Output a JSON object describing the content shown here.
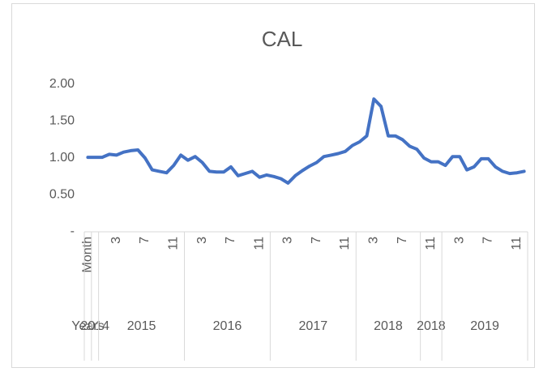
{
  "chart_data": {
    "type": "line",
    "title": "CAL",
    "categories": [
      "Month",
      null,
      null,
      null,
      "3",
      null,
      null,
      null,
      "7",
      null,
      null,
      null,
      "11",
      null,
      null,
      null,
      "3",
      null,
      null,
      null,
      "7",
      null,
      null,
      null,
      "11",
      null,
      null,
      null,
      "3",
      null,
      null,
      null,
      "7",
      null,
      null,
      null,
      "11",
      null,
      null,
      null,
      "3",
      null,
      null,
      null,
      "7",
      null,
      null,
      null,
      "11",
      null,
      null,
      null,
      "3",
      null,
      null,
      null,
      "7",
      null,
      null,
      null,
      "11",
      null
    ],
    "category_groups": [
      {
        "label": "Years",
        "span": 1
      },
      {
        "label": "2014",
        "span": 1
      },
      {
        "label": "2015",
        "span": 12
      },
      {
        "label": "2016",
        "span": 12
      },
      {
        "label": "2017",
        "span": 12
      },
      {
        "label": "2018",
        "span": 9
      },
      {
        "label": "2018",
        "span": 3
      },
      {
        "label": "2019",
        "span": 12
      }
    ],
    "series": [
      {
        "name": "CAL",
        "color": "#4472c4",
        "values": [
          1.01,
          1.01,
          1.01,
          1.05,
          1.04,
          1.08,
          1.1,
          1.11,
          1.0,
          0.84,
          0.82,
          0.8,
          0.9,
          1.04,
          0.97,
          1.02,
          0.94,
          0.82,
          0.81,
          0.81,
          0.88,
          0.76,
          0.79,
          0.82,
          0.74,
          0.77,
          0.75,
          0.72,
          0.66,
          0.76,
          0.83,
          0.89,
          0.94,
          1.02,
          1.04,
          1.06,
          1.09,
          1.17,
          1.22,
          1.3,
          1.8,
          1.7,
          1.3,
          1.3,
          1.25,
          1.16,
          1.12,
          1.0,
          0.95,
          0.95,
          0.9,
          1.02,
          1.02,
          0.84,
          0.88,
          0.99,
          0.99,
          0.88,
          0.82,
          0.79,
          0.8,
          0.82
        ]
      }
    ],
    "ylim": [
      0,
      2
    ],
    "yticks": [
      {
        "value": 0,
        "label": "-"
      },
      {
        "value": 0.5,
        "label": "0.50"
      },
      {
        "value": 1,
        "label": "1.00"
      },
      {
        "value": 1.5,
        "label": "1.50"
      },
      {
        "value": 2,
        "label": "2.00"
      }
    ],
    "grid": false
  }
}
